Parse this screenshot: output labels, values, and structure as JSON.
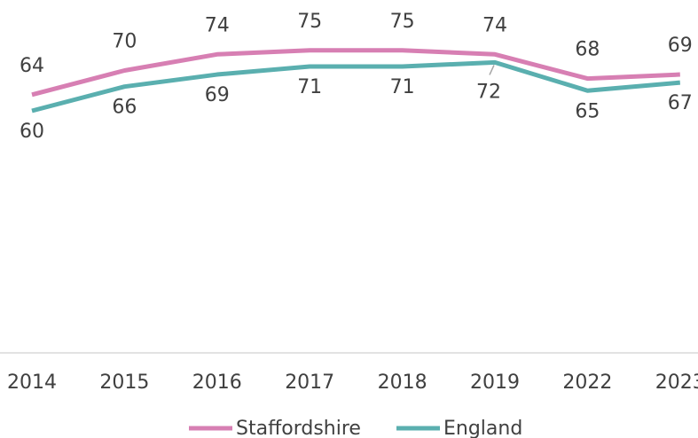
{
  "chart_data": {
    "type": "line",
    "categories": [
      "2014",
      "2015",
      "2016",
      "2017",
      "2018",
      "2019",
      "2022",
      "2023"
    ],
    "series": [
      {
        "name": "Staffordshire",
        "color": "#d77fb3",
        "values": [
          64,
          70,
          74,
          75,
          75,
          74,
          68,
          69
        ]
      },
      {
        "name": "England",
        "color": "#5aafaf",
        "values": [
          60,
          66,
          69,
          71,
          71,
          72,
          65,
          67
        ]
      }
    ],
    "ylim": [
      0,
      80
    ],
    "grid": false,
    "legend": "bottom"
  }
}
